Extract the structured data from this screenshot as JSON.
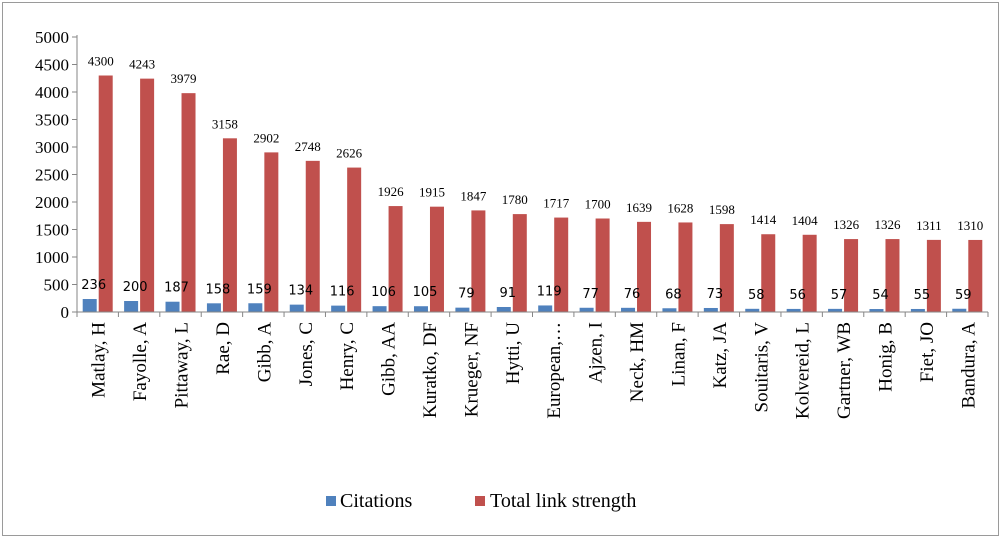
{
  "chart_data": {
    "type": "bar",
    "title": "",
    "xlabel": "",
    "ylabel": "",
    "ylim": [
      0,
      5000
    ],
    "yticks": [
      0,
      500,
      1000,
      1500,
      2000,
      2500,
      3000,
      3500,
      4000,
      4500,
      5000
    ],
    "grid": false,
    "legend_position": "bottom",
    "categories": [
      "Matlay, H",
      "Fayolle, A",
      "Pittaway, L",
      "Rae, D",
      "Gibb, A",
      "Jones, C",
      "Henry, C",
      "Gibb, AA",
      "Kuratko, DF",
      "Krueger, NF",
      "Hytti, U",
      "European,…",
      "Ajzen, I",
      "Neck, HM",
      "Linan, F",
      "Katz, JA",
      "Souitaris, V",
      "Kolvereid, L",
      "Gartner, WB",
      "Honig, B",
      "Fiet, JO",
      "Bandura, A"
    ],
    "series": [
      {
        "name": "Citations",
        "color": "#4F81BD",
        "values": [
          236,
          200,
          187,
          158,
          159,
          134,
          116,
          106,
          105,
          79,
          91,
          119,
          77,
          76,
          68,
          73,
          58,
          56,
          57,
          54,
          55,
          59
        ]
      },
      {
        "name": "Total link strength",
        "color": "#C0504D",
        "values": [
          4300,
          4243,
          3979,
          3158,
          2902,
          2748,
          2626,
          1926,
          1915,
          1847,
          1780,
          1717,
          1700,
          1639,
          1628,
          1598,
          1414,
          1404,
          1326,
          1326,
          1311,
          1310
        ]
      }
    ]
  }
}
